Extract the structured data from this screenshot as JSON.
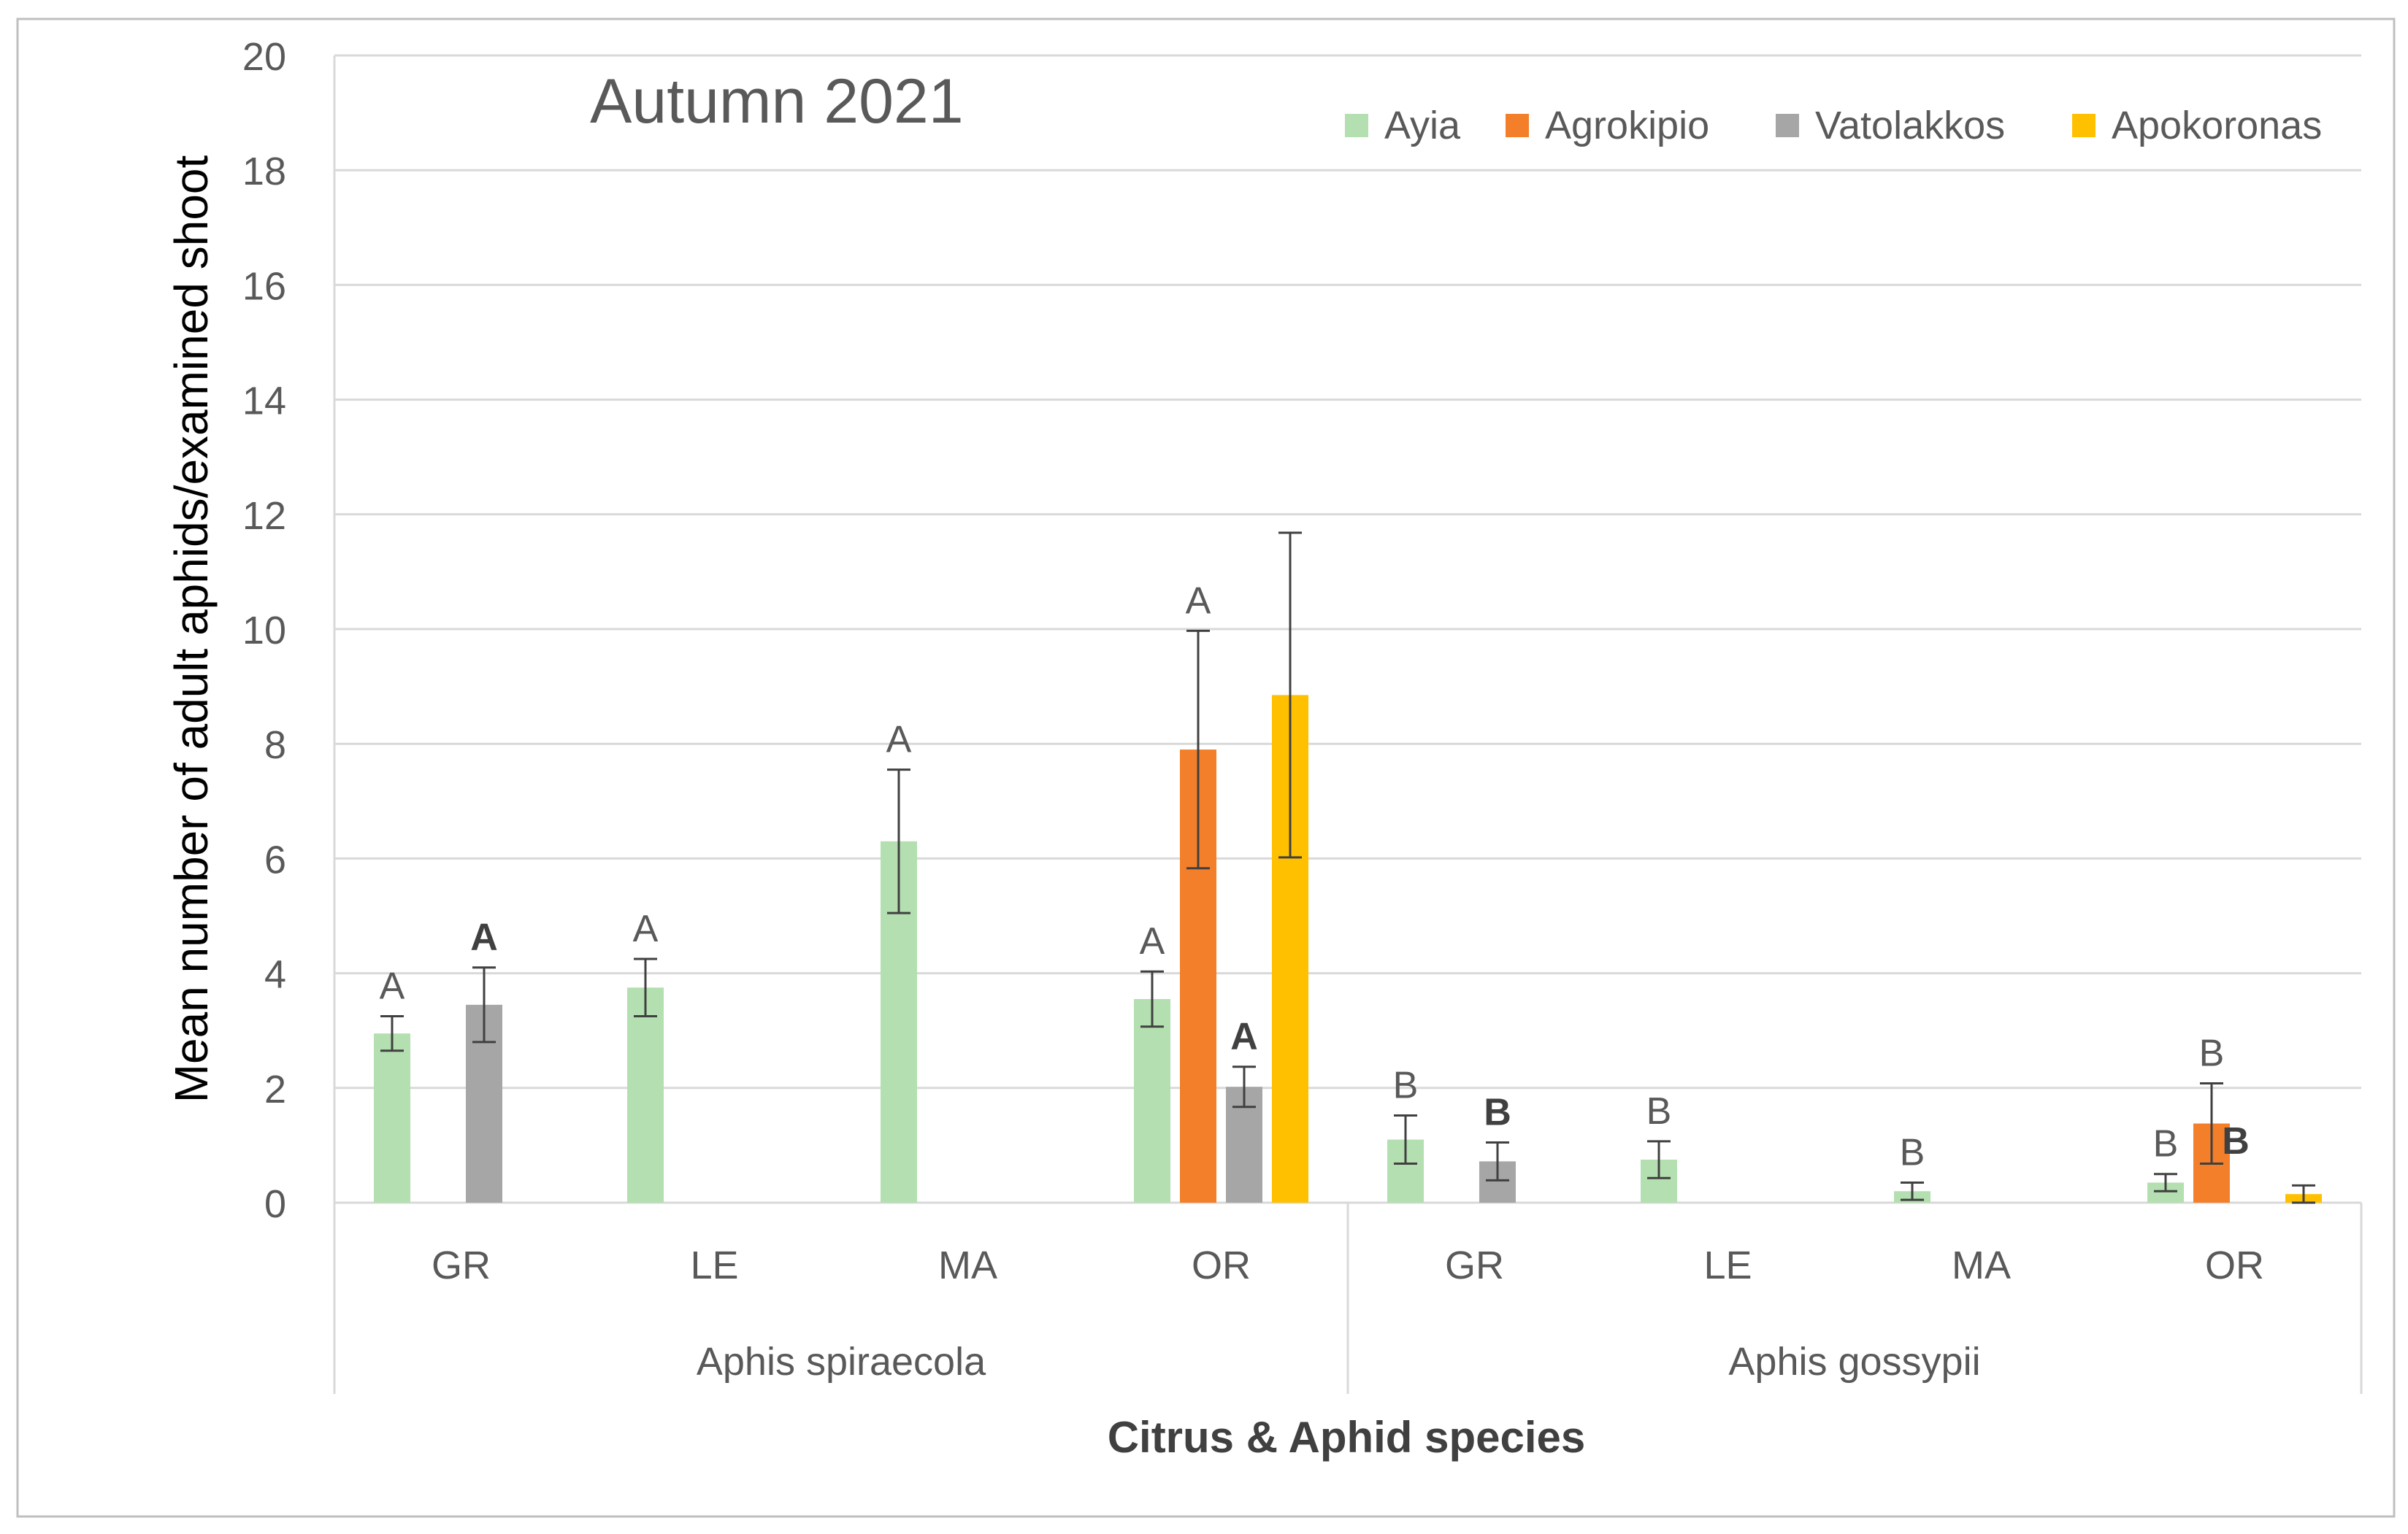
{
  "chart_data": {
    "type": "bar",
    "title": "Autumn 2021",
    "xlabel": "Citrus & Aphid species",
    "ylabel": "Mean number of adult aphids/examined shoot",
    "ylim": [
      0,
      20
    ],
    "yticks": [
      0,
      2,
      4,
      6,
      8,
      10,
      12,
      14,
      16,
      18,
      20
    ],
    "grid": true,
    "legend_position": "top-right",
    "groups": [
      {
        "label": "Aphis spiraecola",
        "categories": [
          "GR",
          "LE",
          "MA",
          "OR"
        ]
      },
      {
        "label": "Aphis gossypii",
        "categories": [
          "GR",
          "LE",
          "MA",
          "OR"
        ]
      }
    ],
    "categories": [
      "GR",
      "LE",
      "MA",
      "OR",
      "GR",
      "LE",
      "MA",
      "OR"
    ],
    "series": [
      {
        "name": "Ayia",
        "color": "#b4dfb0",
        "values": [
          2.95,
          3.75,
          6.3,
          3.55,
          1.1,
          0.75,
          0.2,
          0.35
        ],
        "errors": [
          0.3,
          0.5,
          1.25,
          0.48,
          0.42,
          0.32,
          0.15,
          0.15
        ],
        "letters": [
          "A",
          "A",
          "A",
          "A",
          "B",
          "B",
          "B",
          "B"
        ],
        "bold": [
          false,
          false,
          false,
          false,
          false,
          false,
          false,
          false
        ]
      },
      {
        "name": "Agrokipio",
        "color": "#f47f2a",
        "values": [
          null,
          null,
          null,
          7.9,
          null,
          null,
          null,
          1.38
        ],
        "errors": [
          null,
          null,
          null,
          2.07,
          null,
          null,
          null,
          0.7
        ],
        "letters": [
          null,
          null,
          null,
          "A",
          null,
          null,
          null,
          "B"
        ],
        "bold": [
          false,
          false,
          false,
          false,
          false,
          false,
          false,
          false
        ]
      },
      {
        "name": "Vatolakkos",
        "color": "#a6a6a6",
        "values": [
          3.45,
          null,
          null,
          2.02,
          0.72,
          null,
          null,
          null
        ],
        "errors": [
          0.65,
          null,
          null,
          0.35,
          0.33,
          null,
          null,
          null
        ],
        "letters": [
          "A",
          null,
          null,
          "A",
          "B",
          null,
          null,
          "B"
        ],
        "bold": [
          true,
          false,
          false,
          true,
          true,
          false,
          false,
          true
        ]
      },
      {
        "name": "Apokoronas",
        "color": "#ffc000",
        "values": [
          null,
          null,
          null,
          8.85,
          null,
          null,
          null,
          0.15
        ],
        "errors": [
          null,
          null,
          null,
          2.83,
          null,
          null,
          null,
          0.15
        ],
        "letters": [
          null,
          null,
          null,
          null,
          null,
          null,
          null,
          null
        ],
        "bold": [
          false,
          false,
          false,
          false,
          false,
          false,
          false,
          false
        ]
      }
    ]
  }
}
